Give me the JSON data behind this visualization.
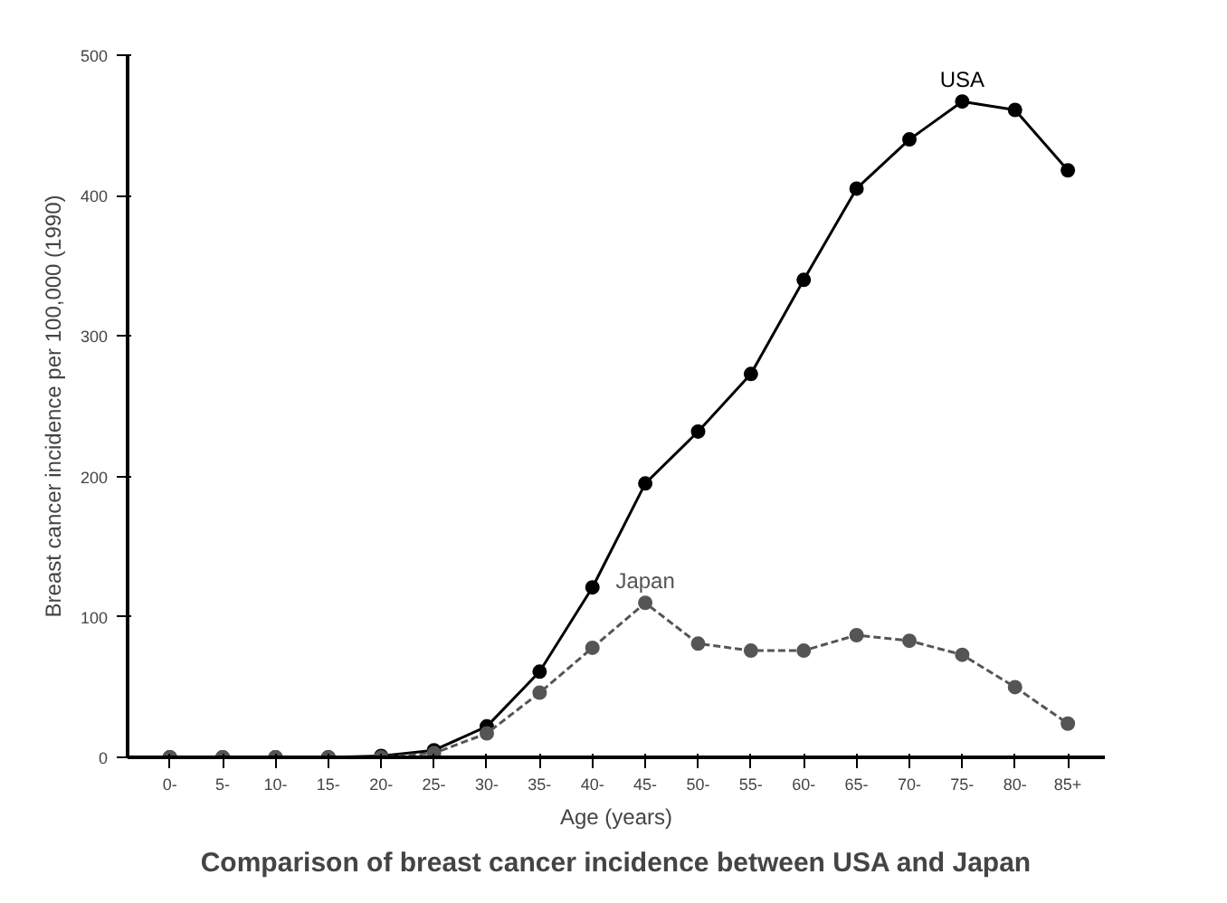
{
  "chart_data": {
    "type": "line",
    "title": "Comparison of breast cancer incidence between USA and Japan",
    "xlabel": "Age (years)",
    "ylabel": "Breast cancer incidence per 100,000 (1990)",
    "categories": [
      "0-",
      "5-",
      "10-",
      "15-",
      "20-",
      "25-",
      "30-",
      "35-",
      "40-",
      "45-",
      "50-",
      "55-",
      "60-",
      "65-",
      "70-",
      "75-",
      "80-",
      "85+"
    ],
    "series": [
      {
        "name": "USA",
        "color": "#000000",
        "line_style": "solid",
        "values": [
          0,
          0,
          0,
          0,
          1,
          5,
          22,
          61,
          121,
          195,
          232,
          273,
          340,
          405,
          440,
          467,
          461,
          418
        ]
      },
      {
        "name": "Japan",
        "color": "#555555",
        "line_style": "dashed",
        "values": [
          0,
          0,
          0,
          0,
          0,
          3,
          17,
          46,
          78,
          110,
          81,
          76,
          76,
          87,
          83,
          73,
          50,
          24
        ]
      }
    ],
    "ylim": [
      0,
      500
    ],
    "yticks": [
      0,
      100,
      200,
      300,
      400,
      500
    ],
    "grid": false,
    "marker": "circle"
  }
}
